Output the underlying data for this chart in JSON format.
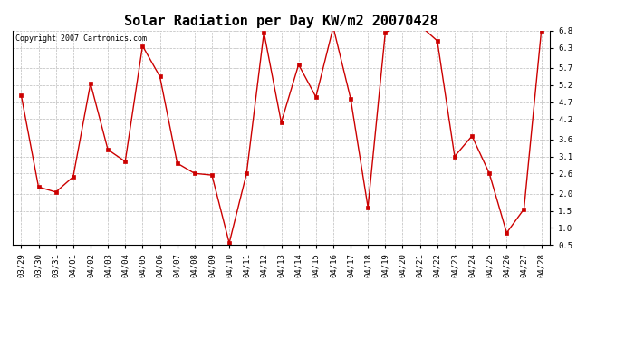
{
  "title": "Solar Radiation per Day KW/m2 20070428",
  "copyright": "Copyright 2007 Cartronics.com",
  "labels": [
    "03/29",
    "03/30",
    "03/31",
    "04/01",
    "04/02",
    "04/03",
    "04/04",
    "04/05",
    "04/06",
    "04/07",
    "04/08",
    "04/09",
    "04/10",
    "04/11",
    "04/12",
    "04/13",
    "04/14",
    "04/15",
    "04/16",
    "04/17",
    "04/18",
    "04/19",
    "04/20",
    "04/21",
    "04/22",
    "04/23",
    "04/24",
    "04/25",
    "04/26",
    "04/27",
    "04/28"
  ],
  "values": [
    4.9,
    2.2,
    2.05,
    2.5,
    5.25,
    3.3,
    2.95,
    6.35,
    5.45,
    2.9,
    2.6,
    2.55,
    0.55,
    2.6,
    6.75,
    4.1,
    5.8,
    4.85,
    6.9,
    4.8,
    1.6,
    6.75,
    6.95,
    6.95,
    6.5,
    3.1,
    3.7,
    2.6,
    0.85,
    1.55,
    6.8
  ],
  "line_color": "#cc0000",
  "marker": "s",
  "marker_size": 2.5,
  "ylim_min": 0.5,
  "ylim_max": 6.8,
  "yticks": [
    0.5,
    1.0,
    1.5,
    2.0,
    2.6,
    3.1,
    3.6,
    4.2,
    4.7,
    5.2,
    5.7,
    6.3,
    6.8
  ],
  "bg_color": "#ffffff",
  "grid_color": "#bbbbbb",
  "title_fontsize": 11,
  "copyright_fontsize": 6,
  "tick_fontsize": 6.5,
  "linewidth": 1.0
}
